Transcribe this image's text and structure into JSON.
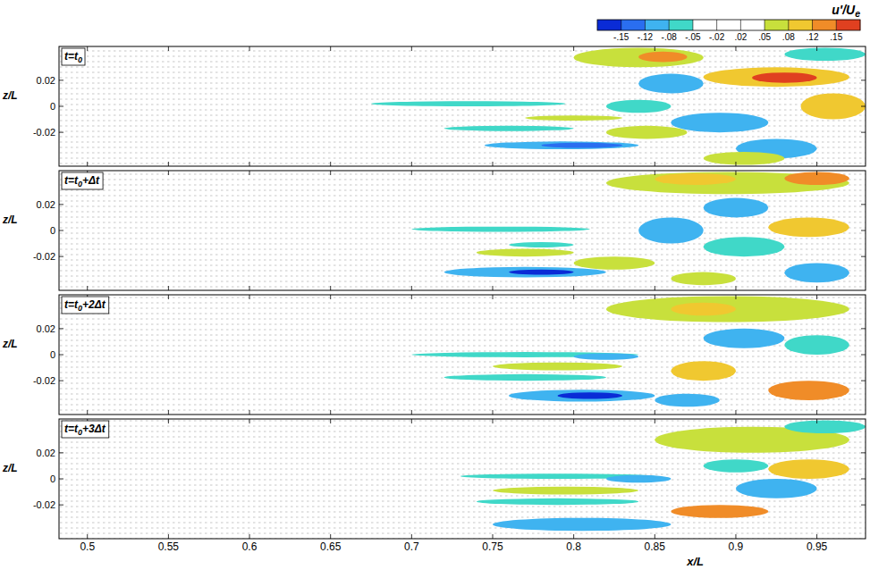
{
  "chart_data": {
    "type": "contour",
    "x_label": "x/L",
    "y_label": "z/L",
    "xlim": [
      0.4825,
      0.98
    ],
    "xticks": [
      0.5,
      0.55,
      0.6,
      0.65,
      0.7,
      0.75,
      0.8,
      0.85,
      0.9,
      0.95
    ],
    "ylim": [
      -0.046,
      0.046
    ],
    "yticks": [
      -0.02,
      0,
      0.02
    ],
    "colorbar": {
      "title": "u'/Ue",
      "ticks": [
        {
          "value": -0.15,
          "label": "-.15"
        },
        {
          "value": -0.12,
          "label": "-.12"
        },
        {
          "value": -0.08,
          "label": "-.08"
        },
        {
          "value": -0.05,
          "label": "-.05"
        },
        {
          "value": -0.02,
          "label": "-.02"
        },
        {
          "value": 0.02,
          "label": ".02"
        },
        {
          "value": 0.05,
          "label": ".05"
        },
        {
          "value": 0.08,
          "label": ".08"
        },
        {
          "value": 0.12,
          "label": ".12"
        },
        {
          "value": 0.15,
          "label": ".15"
        }
      ],
      "colors": [
        "#0a2bd6",
        "#2a6ef0",
        "#3fb3f0",
        "#40d8c8",
        "#ffffff",
        "#ffffff",
        "#ffffff",
        "#c8e03c",
        "#f0c830",
        "#f08c28",
        "#e04020"
      ]
    },
    "panels": [
      {
        "title": "t=t0",
        "cells": [
          {
            "x": [
              0.675,
              0.795
            ],
            "z": [
              0.0,
              0.004
            ],
            "value": -0.07
          },
          {
            "x": [
              0.72,
              0.8
            ],
            "z": [
              -0.019,
              -0.015
            ],
            "value": -0.06
          },
          {
            "x": [
              0.745,
              0.84
            ],
            "z": [
              -0.033,
              -0.027
            ],
            "value": -0.1
          },
          {
            "x": [
              0.78,
              0.83
            ],
            "z": [
              -0.032,
              -0.028
            ],
            "value": -0.13
          },
          {
            "x": [
              0.77,
              0.83
            ],
            "z": [
              -0.011,
              -0.007
            ],
            "value": 0.06
          },
          {
            "x": [
              0.8,
              0.88
            ],
            "z": [
              0.03,
              0.045
            ],
            "value": 0.07
          },
          {
            "x": [
              0.84,
              0.87
            ],
            "z": [
              0.034,
              0.042
            ],
            "value": 0.13
          },
          {
            "x": [
              0.88,
              0.97
            ],
            "z": [
              0.015,
              0.03
            ],
            "value": 0.09
          },
          {
            "x": [
              0.91,
              0.95
            ],
            "z": [
              0.018,
              0.026
            ],
            "value": 0.16
          },
          {
            "x": [
              0.84,
              0.88
            ],
            "z": [
              0.01,
              0.025
            ],
            "value": -0.1
          },
          {
            "x": [
              0.86,
              0.92
            ],
            "z": [
              -0.02,
              -0.005
            ],
            "value": -0.11
          },
          {
            "x": [
              0.82,
              0.86
            ],
            "z": [
              -0.005,
              0.005
            ],
            "value": -0.07
          },
          {
            "x": [
              0.82,
              0.87
            ],
            "z": [
              -0.025,
              -0.015
            ],
            "value": 0.07
          },
          {
            "x": [
              0.9,
              0.95
            ],
            "z": [
              -0.04,
              -0.025
            ],
            "value": -0.1
          },
          {
            "x": [
              0.94,
              0.98
            ],
            "z": [
              -0.01,
              0.01
            ],
            "value": 0.08
          },
          {
            "x": [
              0.93,
              0.98
            ],
            "z": [
              0.035,
              0.045
            ],
            "value": -0.07
          },
          {
            "x": [
              0.88,
              0.93
            ],
            "z": [
              -0.045,
              -0.035
            ],
            "value": 0.06
          }
        ]
      },
      {
        "title": "t=t0+Δt",
        "cells": [
          {
            "x": [
              0.7,
              0.81
            ],
            "z": [
              -0.001,
              0.003
            ],
            "value": -0.07
          },
          {
            "x": [
              0.72,
              0.82
            ],
            "z": [
              -0.036,
              -0.028
            ],
            "value": -0.11
          },
          {
            "x": [
              0.76,
              0.8
            ],
            "z": [
              -0.034,
              -0.03
            ],
            "value": -0.16
          },
          {
            "x": [
              0.74,
              0.8
            ],
            "z": [
              -0.02,
              -0.014
            ],
            "value": 0.06
          },
          {
            "x": [
              0.76,
              0.8
            ],
            "z": [
              -0.013,
              -0.009
            ],
            "value": -0.06
          },
          {
            "x": [
              0.82,
              0.97
            ],
            "z": [
              0.028,
              0.045
            ],
            "value": 0.07
          },
          {
            "x": [
              0.85,
              0.9
            ],
            "z": [
              0.035,
              0.044
            ],
            "value": 0.11
          },
          {
            "x": [
              0.93,
              0.97
            ],
            "z": [
              0.035,
              0.045
            ],
            "value": 0.13
          },
          {
            "x": [
              0.84,
              0.88
            ],
            "z": [
              -0.01,
              0.01
            ],
            "value": -0.12
          },
          {
            "x": [
              0.88,
              0.93
            ],
            "z": [
              -0.02,
              -0.005
            ],
            "value": -0.07
          },
          {
            "x": [
              0.8,
              0.85
            ],
            "z": [
              -0.03,
              -0.02
            ],
            "value": 0.07
          },
          {
            "x": [
              0.88,
              0.92
            ],
            "z": [
              0.01,
              0.025
            ],
            "value": -0.1
          },
          {
            "x": [
              0.92,
              0.97
            ],
            "z": [
              -0.005,
              0.01
            ],
            "value": 0.08
          },
          {
            "x": [
              0.93,
              0.97
            ],
            "z": [
              -0.04,
              -0.025
            ],
            "value": -0.11
          },
          {
            "x": [
              0.86,
              0.9
            ],
            "z": [
              -0.042,
              -0.032
            ],
            "value": 0.06
          }
        ]
      },
      {
        "title": "t=t0+2Δt",
        "cells": [
          {
            "x": [
              0.7,
              0.84
            ],
            "z": [
              -0.002,
              0.002
            ],
            "value": -0.07
          },
          {
            "x": [
              0.8,
              0.84
            ],
            "z": [
              -0.004,
              0.001
            ],
            "value": -0.12
          },
          {
            "x": [
              0.75,
              0.83
            ],
            "z": [
              -0.012,
              -0.006
            ],
            "value": 0.06
          },
          {
            "x": [
              0.72,
              0.82
            ],
            "z": [
              -0.02,
              -0.015
            ],
            "value": -0.06
          },
          {
            "x": [
              0.76,
              0.85
            ],
            "z": [
              -0.036,
              -0.027
            ],
            "value": -0.12
          },
          {
            "x": [
              0.79,
              0.83
            ],
            "z": [
              -0.034,
              -0.029
            ],
            "value": -0.16
          },
          {
            "x": [
              0.82,
              0.97
            ],
            "z": [
              0.025,
              0.045
            ],
            "value": 0.07
          },
          {
            "x": [
              0.86,
              0.9
            ],
            "z": [
              0.03,
              0.04
            ],
            "value": 0.11
          },
          {
            "x": [
              0.88,
              0.93
            ],
            "z": [
              0.005,
              0.02
            ],
            "value": -0.11
          },
          {
            "x": [
              0.86,
              0.9
            ],
            "z": [
              -0.02,
              -0.005
            ],
            "value": 0.08
          },
          {
            "x": [
              0.92,
              0.97
            ],
            "z": [
              -0.035,
              -0.02
            ],
            "value": 0.13
          },
          {
            "x": [
              0.93,
              0.97
            ],
            "z": [
              0.0,
              0.015
            ],
            "value": -0.07
          },
          {
            "x": [
              0.85,
              0.89
            ],
            "z": [
              -0.04,
              -0.03
            ],
            "value": -0.1
          }
        ]
      },
      {
        "title": "t=t0+3Δt",
        "cells": [
          {
            "x": [
              0.73,
              0.85
            ],
            "z": [
              0.0,
              0.004
            ],
            "value": -0.07
          },
          {
            "x": [
              0.82,
              0.86
            ],
            "z": [
              -0.003,
              0.003
            ],
            "value": -0.12
          },
          {
            "x": [
              0.75,
              0.84
            ],
            "z": [
              -0.012,
              -0.006
            ],
            "value": 0.06
          },
          {
            "x": [
              0.74,
              0.84
            ],
            "z": [
              -0.02,
              -0.015
            ],
            "value": -0.06
          },
          {
            "x": [
              0.75,
              0.86
            ],
            "z": [
              -0.04,
              -0.03
            ],
            "value": -0.11
          },
          {
            "x": [
              0.85,
              0.97
            ],
            "z": [
              0.02,
              0.04
            ],
            "value": 0.07
          },
          {
            "x": [
              0.86,
              0.92
            ],
            "z": [
              -0.03,
              -0.02
            ],
            "value": 0.13
          },
          {
            "x": [
              0.9,
              0.95
            ],
            "z": [
              -0.015,
              0.0
            ],
            "value": -0.11
          },
          {
            "x": [
              0.93,
              0.98
            ],
            "z": [
              0.035,
              0.045
            ],
            "value": -0.07
          },
          {
            "x": [
              0.92,
              0.97
            ],
            "z": [
              0.0,
              0.015
            ],
            "value": 0.08
          },
          {
            "x": [
              0.88,
              0.92
            ],
            "z": [
              0.005,
              0.015
            ],
            "value": -0.07
          }
        ]
      }
    ]
  }
}
